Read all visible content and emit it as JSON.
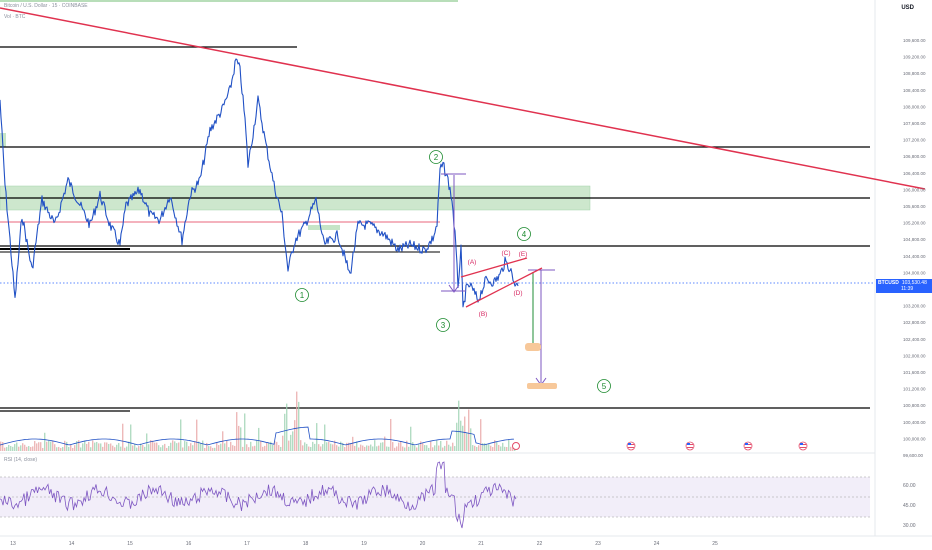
{
  "header": {
    "symbol_line": "Bitcoin / U.S. Dollar · 15 · COINBASE",
    "indicator_line": "Vol · BTC"
  },
  "price_axis": {
    "unit": "USD",
    "labels": [
      "109,600.00",
      "109,200.00",
      "108,800.00",
      "108,400.00",
      "108,000.00",
      "107,600.00",
      "107,200.00",
      "106,800.00",
      "106,400.00",
      "106,000.00",
      "105,600.00",
      "105,200.00",
      "104,800.00",
      "104,400.00",
      "104,000.00",
      "103,600.00",
      "103,200.00",
      "102,800.00",
      "102,400.00",
      "102,000.00",
      "101,600.00",
      "101,200.00",
      "100,800.00",
      "100,400.00",
      "100,000.00",
      "99,600.00"
    ]
  },
  "current_price": {
    "symbol": "BTCUSD",
    "price": "103,530.48",
    "countdown": "11:39"
  },
  "rsi": {
    "label": "RSI (14, close)",
    "levels": [
      "60.00",
      "45.00",
      "30.00"
    ]
  },
  "time_axis": {
    "labels": [
      "13",
      "14",
      "15",
      "16",
      "17",
      "18",
      "19",
      "20",
      "21",
      "22",
      "23",
      "24",
      "25"
    ]
  },
  "wave_labels": {
    "w1": "1",
    "w2": "2",
    "w3": "3",
    "w4": "4",
    "w5": "5"
  },
  "triangle_labels": {
    "a": "(A)",
    "b": "(B)",
    "c": "(C)",
    "d": "(D)",
    "e": "(E)"
  },
  "colors": {
    "price_line": "#2151c5",
    "trend_line": "#e0324f",
    "zone_fill": "#b8deb9",
    "wave_label": "#1b8a2e",
    "triangle_label": "#d6245f",
    "target_fill": "#f7c89a",
    "rsi_line": "#7e57c2",
    "current_price_tag": "#2962ff",
    "event_flag": "#e34c6a"
  },
  "event_flags": [
    "us-flag-icon",
    "us-flag-icon",
    "us-flag-icon",
    "us-flag-icon",
    "us-flag-icon"
  ]
}
